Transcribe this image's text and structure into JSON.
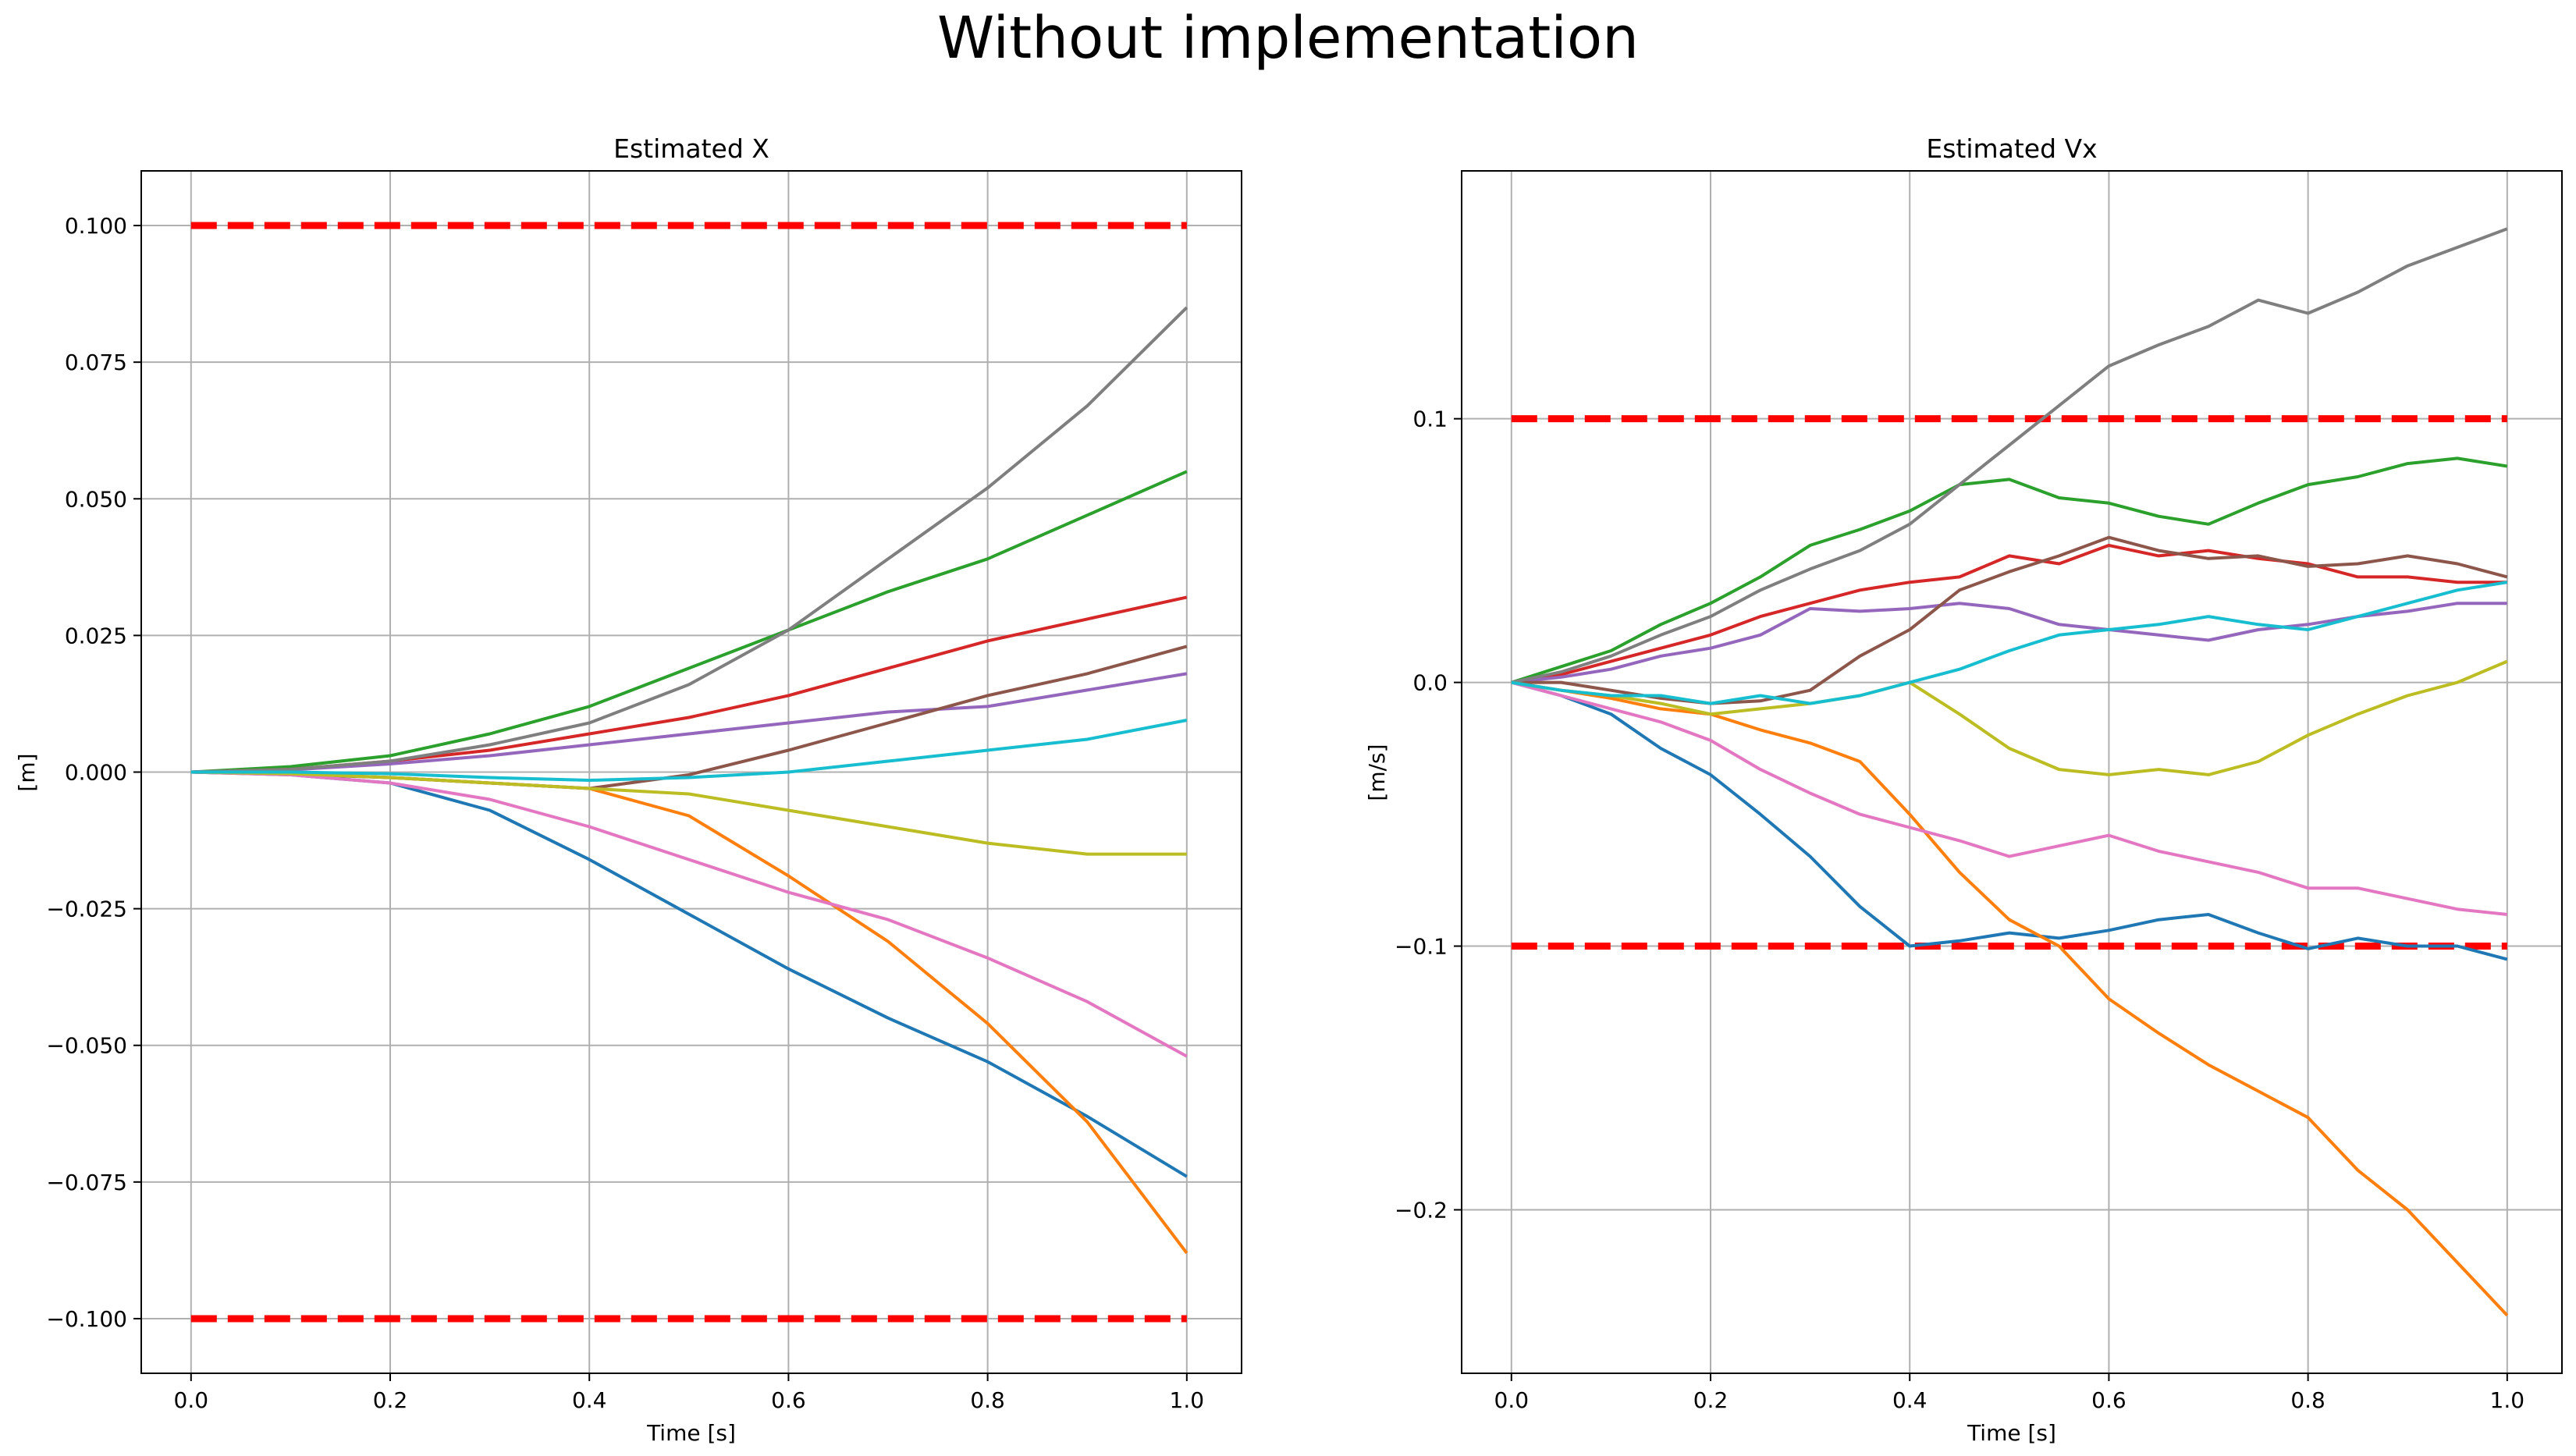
{
  "figure": {
    "suptitle": "Without implementation"
  },
  "chart_data": [
    {
      "type": "line",
      "title": "Estimated X",
      "xlabel": "Time [s]",
      "ylabel": "[m]",
      "xlim": [
        -0.05,
        1.055
      ],
      "ylim": [
        -0.11,
        0.11
      ],
      "grid": true,
      "xticks": [
        0.0,
        0.2,
        0.4,
        0.6,
        0.8,
        1.0
      ],
      "xtick_labels": [
        "0.0",
        "0.2",
        "0.4",
        "0.6",
        "0.8",
        "1.0"
      ],
      "yticks": [
        0.1,
        0.075,
        0.05,
        0.025,
        0.0,
        -0.025,
        -0.05,
        -0.075,
        -0.1
      ],
      "ytick_labels": [
        "0.100",
        "0.075",
        "0.050",
        "0.025",
        "0.000",
        "−0.025",
        "−0.050",
        "−0.075",
        "−0.100"
      ],
      "limits": [
        {
          "x": [
            0.0,
            1.0
          ],
          "y": [
            0.1,
            0.1
          ],
          "color": "#ff0000"
        },
        {
          "x": [
            0.0,
            1.0
          ],
          "y": [
            -0.1,
            -0.1
          ],
          "color": "#ff0000"
        }
      ],
      "x": [
        0.0,
        0.1,
        0.2,
        0.3,
        0.4,
        0.5,
        0.6,
        0.7,
        0.8,
        0.9,
        1.0
      ],
      "series": [
        {
          "color": "#1f77b4",
          "values": [
            0.0,
            -0.0005,
            -0.002,
            -0.007,
            -0.016,
            -0.026,
            -0.036,
            -0.045,
            -0.053,
            -0.063,
            -0.074
          ]
        },
        {
          "color": "#ff7f0e",
          "values": [
            0.0,
            -0.0003,
            -0.001,
            -0.002,
            -0.003,
            -0.008,
            -0.019,
            -0.031,
            -0.046,
            -0.064,
            -0.088
          ]
        },
        {
          "color": "#2ca02c",
          "values": [
            0.0,
            0.001,
            0.003,
            0.007,
            0.012,
            0.019,
            0.026,
            0.033,
            0.039,
            0.047,
            0.055
          ]
        },
        {
          "color": "#d62728",
          "values": [
            0.0,
            0.0005,
            0.002,
            0.004,
            0.007,
            0.01,
            0.014,
            0.019,
            0.024,
            0.028,
            0.032
          ]
        },
        {
          "color": "#9467bd",
          "values": [
            0.0,
            0.0004,
            0.0015,
            0.003,
            0.005,
            0.007,
            0.009,
            0.011,
            0.012,
            0.015,
            0.018
          ]
        },
        {
          "color": "#8c564b",
          "values": [
            0.0,
            -0.0004,
            -0.001,
            -0.002,
            -0.003,
            -0.0005,
            0.004,
            0.009,
            0.014,
            0.018,
            0.023
          ]
        },
        {
          "color": "#e377c2",
          "values": [
            0.0,
            -0.0005,
            -0.002,
            -0.005,
            -0.01,
            -0.016,
            -0.022,
            -0.027,
            -0.034,
            -0.042,
            -0.052
          ]
        },
        {
          "color": "#7f7f7f",
          "values": [
            0.0,
            0.0005,
            0.002,
            0.005,
            0.009,
            0.016,
            0.026,
            0.039,
            0.052,
            0.067,
            0.085
          ]
        },
        {
          "color": "#bcbd22",
          "values": [
            0.0,
            -0.0003,
            -0.001,
            -0.002,
            -0.003,
            -0.004,
            -0.007,
            -0.01,
            -0.013,
            -0.015,
            -0.015
          ]
        },
        {
          "color": "#17becf",
          "values": [
            0.0,
            0.0,
            -0.0003,
            -0.001,
            -0.0015,
            -0.001,
            0.0,
            0.002,
            0.004,
            0.006,
            0.0095
          ]
        }
      ]
    },
    {
      "type": "line",
      "title": "Estimated Vx",
      "xlabel": "Time [s]",
      "ylabel": "[m/s]",
      "xlim": [
        -0.05,
        1.055
      ],
      "ylim": [
        -0.262,
        0.194
      ],
      "grid": true,
      "xticks": [
        0.0,
        0.2,
        0.4,
        0.6,
        0.8,
        1.0
      ],
      "xtick_labels": [
        "0.0",
        "0.2",
        "0.4",
        "0.6",
        "0.8",
        "1.0"
      ],
      "yticks": [
        0.1,
        0.0,
        -0.1,
        -0.2
      ],
      "ytick_labels": [
        "0.1",
        "0.0",
        "−0.1",
        "−0.2"
      ],
      "limits": [
        {
          "x": [
            0.0,
            1.0
          ],
          "y": [
            0.1,
            0.1
          ],
          "color": "#ff0000"
        },
        {
          "x": [
            0.0,
            1.0
          ],
          "y": [
            -0.1,
            -0.1
          ],
          "color": "#ff0000"
        }
      ],
      "x": [
        0.0,
        0.05,
        0.1,
        0.15,
        0.2,
        0.25,
        0.3,
        0.35,
        0.4,
        0.45,
        0.5,
        0.55,
        0.6,
        0.65,
        0.7,
        0.75,
        0.8,
        0.85,
        0.9,
        0.95,
        1.0
      ],
      "series": [
        {
          "color": "#1f77b4",
          "values": [
            0.0,
            -0.005,
            -0.012,
            -0.025,
            -0.035,
            -0.05,
            -0.066,
            -0.085,
            -0.1,
            -0.098,
            -0.095,
            -0.097,
            -0.094,
            -0.09,
            -0.088,
            -0.095,
            -0.101,
            -0.097,
            -0.1,
            -0.1,
            -0.105
          ]
        },
        {
          "color": "#ff7f0e",
          "values": [
            0.0,
            -0.003,
            -0.006,
            -0.01,
            -0.012,
            -0.018,
            -0.023,
            -0.03,
            -0.05,
            -0.072,
            -0.09,
            -0.1,
            -0.12,
            -0.133,
            -0.145,
            -0.155,
            -0.165,
            -0.185,
            -0.2,
            -0.22,
            -0.24
          ]
        },
        {
          "color": "#2ca02c",
          "values": [
            0.0,
            0.006,
            0.012,
            0.022,
            0.03,
            0.04,
            0.052,
            0.058,
            0.065,
            0.075,
            0.077,
            0.07,
            0.068,
            0.063,
            0.06,
            0.068,
            0.075,
            0.078,
            0.083,
            0.085,
            0.082
          ]
        },
        {
          "color": "#d62728",
          "values": [
            0.0,
            0.003,
            0.008,
            0.013,
            0.018,
            0.025,
            0.03,
            0.035,
            0.038,
            0.04,
            0.048,
            0.045,
            0.052,
            0.048,
            0.05,
            0.047,
            0.045,
            0.04,
            0.04,
            0.038,
            0.038
          ]
        },
        {
          "color": "#9467bd",
          "values": [
            0.0,
            0.002,
            0.005,
            0.01,
            0.013,
            0.018,
            0.028,
            0.027,
            0.028,
            0.03,
            0.028,
            0.022,
            0.02,
            0.018,
            0.016,
            0.02,
            0.022,
            0.025,
            0.027,
            0.03,
            0.03
          ]
        },
        {
          "color": "#8c564b",
          "values": [
            0.0,
            0.0,
            -0.003,
            -0.006,
            -0.008,
            -0.007,
            -0.003,
            0.01,
            0.02,
            0.035,
            0.042,
            0.048,
            0.055,
            0.05,
            0.047,
            0.048,
            0.044,
            0.045,
            0.048,
            0.045,
            0.04
          ]
        },
        {
          "color": "#e377c2",
          "values": [
            0.0,
            -0.005,
            -0.01,
            -0.015,
            -0.022,
            -0.033,
            -0.042,
            -0.05,
            -0.055,
            -0.06,
            -0.066,
            -0.062,
            -0.058,
            -0.064,
            -0.068,
            -0.072,
            -0.078,
            -0.078,
            -0.082,
            -0.086,
            -0.088
          ]
        },
        {
          "color": "#7f7f7f",
          "values": [
            0.0,
            0.004,
            0.01,
            0.018,
            0.025,
            0.035,
            0.043,
            0.05,
            0.06,
            0.075,
            0.09,
            0.105,
            0.12,
            0.128,
            0.135,
            0.145,
            0.14,
            0.148,
            0.158,
            0.165,
            0.172
          ]
        },
        {
          "color": "#bcbd22",
          "values": [
            0.0,
            -0.003,
            -0.005,
            -0.008,
            -0.012,
            -0.01,
            -0.008,
            -0.005,
            0.0,
            -0.012,
            -0.025,
            -0.033,
            -0.035,
            -0.033,
            -0.035,
            -0.03,
            -0.02,
            -0.012,
            -0.005,
            0.0,
            0.008
          ]
        },
        {
          "color": "#17becf",
          "values": [
            0.0,
            -0.003,
            -0.005,
            -0.005,
            -0.008,
            -0.005,
            -0.008,
            -0.005,
            0.0,
            0.005,
            0.012,
            0.018,
            0.02,
            0.022,
            0.025,
            0.022,
            0.02,
            0.025,
            0.03,
            0.035,
            0.038
          ]
        }
      ]
    }
  ]
}
